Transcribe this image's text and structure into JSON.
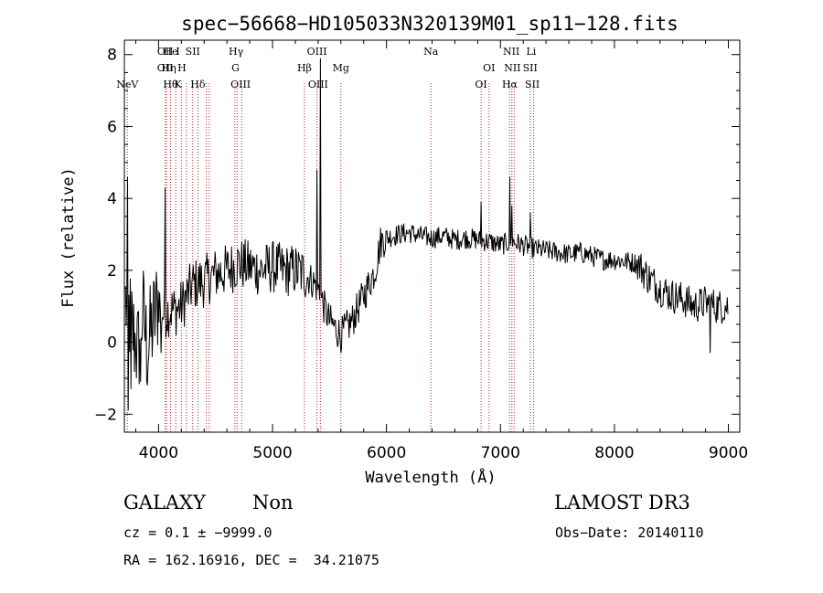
{
  "chart_data": {
    "type": "line",
    "title": "spec−56668−HD105033N320139M01_sp11−128.fits",
    "xlabel": "Wavelength (Å)",
    "ylabel": "Flux (relative)",
    "xlim": [
      3700,
      9100
    ],
    "ylim": [
      -2.5,
      8.4
    ],
    "x_ticks": [
      4000,
      5000,
      6000,
      7000,
      8000,
      9000
    ],
    "y_ticks": [
      -2,
      0,
      2,
      4,
      6,
      8
    ],
    "grid": false,
    "line_color": "#000000",
    "marker_color": "#b22222",
    "spectrum_anchors": [
      [
        3700,
        1.2
      ],
      [
        3740,
        0.8
      ],
      [
        3780,
        0.2
      ],
      [
        3820,
        -0.3
      ],
      [
        3860,
        0.9
      ],
      [
        3900,
        -0.2
      ],
      [
        3950,
        0.5
      ],
      [
        4000,
        1.2
      ],
      [
        4040,
        0.8
      ],
      [
        4100,
        0.9
      ],
      [
        4150,
        0.9
      ],
      [
        4200,
        1.0
      ],
      [
        4300,
        1.6
      ],
      [
        4400,
        1.7
      ],
      [
        4500,
        1.9
      ],
      [
        4600,
        2.0
      ],
      [
        4700,
        2.2
      ],
      [
        4800,
        2.1
      ],
      [
        4900,
        2.0
      ],
      [
        5000,
        2.1
      ],
      [
        5100,
        2.0
      ],
      [
        5200,
        2.0
      ],
      [
        5280,
        1.9
      ],
      [
        5350,
        1.7
      ],
      [
        5400,
        1.5
      ],
      [
        5450,
        1.0
      ],
      [
        5500,
        0.6
      ],
      [
        5550,
        0.4
      ],
      [
        5600,
        0.2
      ],
      [
        5700,
        0.6
      ],
      [
        5800,
        1.3
      ],
      [
        5900,
        2.0
      ],
      [
        5950,
        2.8
      ],
      [
        6000,
        2.9
      ],
      [
        6100,
        3.0
      ],
      [
        6200,
        3.05
      ],
      [
        6300,
        2.95
      ],
      [
        6400,
        2.9
      ],
      [
        6500,
        2.95
      ],
      [
        6600,
        2.85
      ],
      [
        6700,
        2.9
      ],
      [
        6800,
        2.85
      ],
      [
        6900,
        2.8
      ],
      [
        7000,
        2.7
      ],
      [
        7100,
        2.8
      ],
      [
        7200,
        2.7
      ],
      [
        7300,
        2.6
      ],
      [
        7400,
        2.55
      ],
      [
        7500,
        2.5
      ],
      [
        7600,
        2.45
      ],
      [
        7700,
        2.5
      ],
      [
        7800,
        2.4
      ],
      [
        7900,
        2.3
      ],
      [
        8000,
        2.3
      ],
      [
        8100,
        2.25
      ],
      [
        8200,
        2.2
      ],
      [
        8300,
        1.8
      ],
      [
        8400,
        1.5
      ],
      [
        8500,
        1.3
      ],
      [
        8600,
        1.2
      ],
      [
        8700,
        1.0
      ],
      [
        8800,
        1.1
      ],
      [
        8900,
        1.0
      ],
      [
        9000,
        1.0
      ]
    ],
    "spikes": [
      {
        "x": 3727,
        "y": 4.6
      },
      {
        "x": 3735,
        "y": -1.9
      },
      {
        "x": 3760,
        "y": -1.3
      },
      {
        "x": 3800,
        "y": -0.3
      },
      {
        "x": 3840,
        "y": -1.1
      },
      {
        "x": 4020,
        "y": -0.3
      },
      {
        "x": 4058,
        "y": 4.3
      },
      {
        "x": 5390,
        "y": 4.8
      },
      {
        "x": 5420,
        "y": 7.9
      },
      {
        "x": 6830,
        "y": 3.9
      },
      {
        "x": 7082,
        "y": 4.6
      },
      {
        "x": 7100,
        "y": 3.8
      },
      {
        "x": 7262,
        "y": 3.6
      },
      {
        "x": 8840,
        "y": -0.3
      }
    ],
    "noise_amplitude": [
      {
        "from": 3700,
        "to": 4000,
        "amp": 1.5
      },
      {
        "from": 4000,
        "to": 5300,
        "amp": 0.75
      },
      {
        "from": 5300,
        "to": 6000,
        "amp": 0.5
      },
      {
        "from": 6000,
        "to": 8200,
        "amp": 0.3
      },
      {
        "from": 8200,
        "to": 9000,
        "amp": 0.5
      }
    ],
    "line_markers": [
      {
        "label": "NeV",
        "x": 3726,
        "row": 2
      },
      {
        "label": "OII",
        "x": 4058,
        "row": 0
      },
      {
        "label": "OII",
        "x": 4058,
        "row": 1
      },
      {
        "label": "He",
        "x": 4105,
        "row": 0
      },
      {
        "label": "Hη",
        "x": 4090,
        "row": 1
      },
      {
        "label": "Hθ",
        "x": 4105,
        "row": 2
      },
      {
        "label": "I",
        "x": 4170,
        "row": 0
      },
      {
        "label": "H",
        "x": 4205,
        "row": 1
      },
      {
        "label": "K",
        "x": 4170,
        "row": 2
      },
      {
        "label": "SII",
        "x": 4300,
        "row": 0
      },
      {
        "label": "Hδ",
        "x": 4345,
        "row": 2
      },
      {
        "label": "Hγ",
        "x": 4680,
        "row": 0
      },
      {
        "label": "G",
        "x": 4675,
        "row": 1
      },
      {
        "label": "OIII",
        "x": 4720,
        "row": 2
      },
      {
        "label": "OIII",
        "x": 5390,
        "row": 0
      },
      {
        "label": "Hβ",
        "x": 5280,
        "row": 1
      },
      {
        "label": "OIII",
        "x": 5400,
        "row": 2
      },
      {
        "label": "Mg",
        "x": 5600,
        "row": 1
      },
      {
        "label": "Na",
        "x": 6390,
        "row": 0
      },
      {
        "label": "OI",
        "x": 6900,
        "row": 1
      },
      {
        "label": "OI",
        "x": 6830,
        "row": 2
      },
      {
        "label": "NII",
        "x": 7095,
        "row": 0
      },
      {
        "label": "NII",
        "x": 7105,
        "row": 1
      },
      {
        "label": "Hα",
        "x": 7082,
        "row": 2
      },
      {
        "label": "SII",
        "x": 7260,
        "row": 1
      },
      {
        "label": "Li",
        "x": 7270,
        "row": 0
      },
      {
        "label": "SII",
        "x": 7280,
        "row": 2
      }
    ],
    "marker_lines_x": [
      3726,
      4058,
      4070,
      4105,
      4150,
      4200,
      4245,
      4300,
      4345,
      4420,
      4445,
      4670,
      4690,
      4730,
      5280,
      5390,
      5420,
      5600,
      6390,
      6830,
      6900,
      7080,
      7100,
      7120,
      7262,
      7290
    ]
  },
  "footer": {
    "object_type": "GALAXY",
    "subclass": "Non",
    "cz_line": "cz = 0.1 ± −9999.0",
    "coords_line": "RA = 162.16916, DEC =  34.21075",
    "survey": "LAMOST DR3",
    "obs_date": "Obs−Date: 20140110"
  }
}
